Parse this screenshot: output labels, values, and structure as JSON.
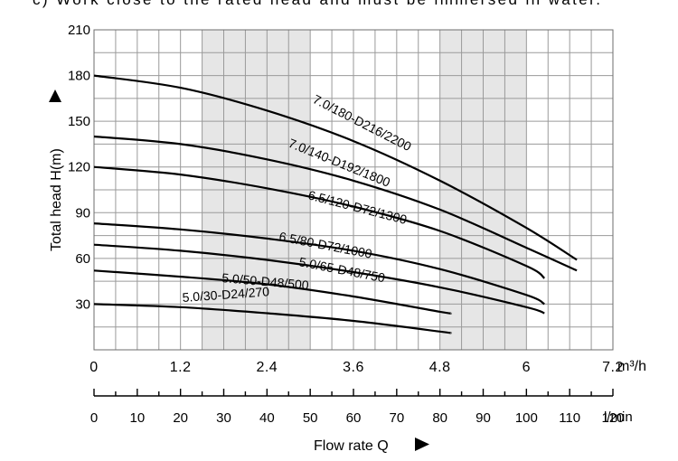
{
  "header_text": "c) Work close to the rated head and must be immersed in water.",
  "chart_data": {
    "type": "line",
    "xlabel": "Flow rate Q",
    "ylabel": "Total head H(m)",
    "x_unit": "m³/h",
    "x2_unit": "l/min",
    "xlim": [
      0,
      7.2
    ],
    "ylim": [
      0,
      210
    ],
    "x2lim": [
      0,
      120
    ],
    "x_ticks": [
      "0",
      "1.2",
      "2.4",
      "3.6",
      "4.8",
      "6",
      "7.2"
    ],
    "y_ticks": [
      "30",
      "60",
      "90",
      "120",
      "150",
      "180",
      "210"
    ],
    "x2_ticks": [
      "0",
      "10",
      "20",
      "30",
      "40",
      "50",
      "60",
      "70",
      "80",
      "90",
      "100",
      "110",
      "120"
    ],
    "grid": true,
    "shaded_x_ranges": [
      [
        1.5,
        3.0
      ],
      [
        4.8,
        6.0
      ]
    ],
    "series": [
      {
        "name": "7.0/180-D216/2200",
        "x": [
          0,
          1.2,
          2.4,
          3.6,
          4.8,
          6.0,
          6.7
        ],
        "y": [
          180,
          172,
          157,
          137,
          111,
          80,
          59
        ]
      },
      {
        "name": "7.0/140-D192/1800",
        "x": [
          0,
          1.2,
          2.4,
          3.6,
          4.8,
          6.0,
          6.7
        ],
        "y": [
          140,
          135,
          125,
          111,
          92,
          67,
          52
        ]
      },
      {
        "name": "6.5/120-D72/1300",
        "x": [
          0,
          1.2,
          2.4,
          3.6,
          4.8,
          6.0,
          6.25
        ],
        "y": [
          120,
          115,
          106,
          94,
          78,
          55,
          47
        ]
      },
      {
        "name": "6.5/80-D72/1000",
        "x": [
          0,
          1.2,
          2.4,
          3.6,
          4.8,
          6.0,
          6.25
        ],
        "y": [
          83,
          79,
          73,
          65,
          53,
          36,
          30
        ]
      },
      {
        "name": "5.0/65-D48/750",
        "x": [
          0,
          1.2,
          2.4,
          3.6,
          4.8,
          6.0,
          6.25
        ],
        "y": [
          69,
          65,
          59,
          51,
          41,
          28,
          24
        ]
      },
      {
        "name": "5.0/50-D48/500",
        "x": [
          0,
          1.2,
          2.4,
          3.6,
          4.8,
          4.95
        ],
        "y": [
          52,
          48,
          43,
          35,
          25,
          24
        ]
      },
      {
        "name": "5.0/30-D24/270",
        "x": [
          0,
          1.2,
          2.4,
          3.6,
          4.8,
          4.95
        ],
        "y": [
          30,
          28,
          24,
          19,
          12,
          11
        ]
      }
    ]
  }
}
